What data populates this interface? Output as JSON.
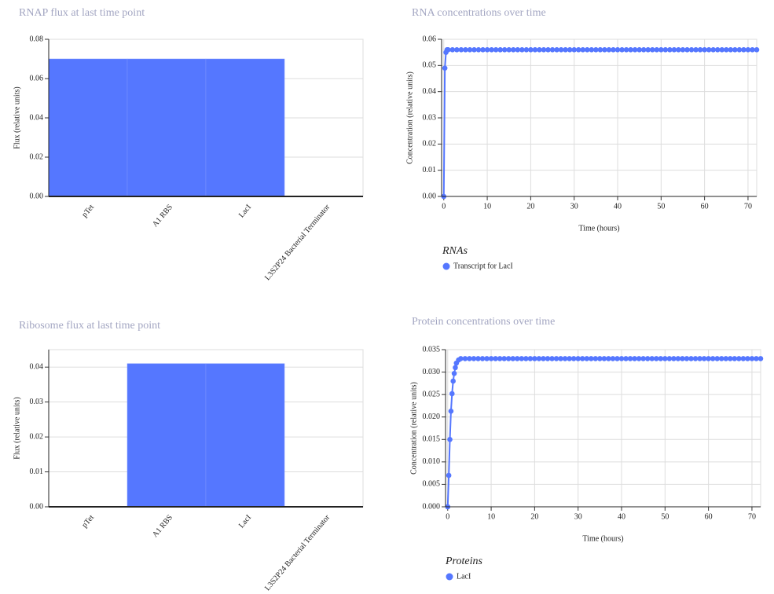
{
  "chart_data": [
    {
      "type": "bar",
      "title": "RNAP flux at last time point",
      "y_label": "Flux (relative units)",
      "categories": [
        "pTet",
        "A1 RBS",
        "LacI",
        "L3S2P24 Bacterial Terminator"
      ],
      "values": [
        0.07,
        0.07,
        0.07,
        0
      ],
      "color": "#5577ff",
      "ylim": [
        0,
        0.08
      ],
      "yticks": [
        {
          "value": 0,
          "label": "0.00"
        },
        0.02,
        0.04,
        0.06,
        0.08
      ],
      "grid": true
    },
    {
      "type": "scatter",
      "title": "RNA concentrations over time",
      "x_label": "Time (hours)",
      "y_label": "Concentration (relative units)",
      "legend_title": "RNAs",
      "x": [
        0,
        0.25,
        0.5,
        0.75,
        1,
        2,
        3,
        4,
        5,
        6,
        7,
        8,
        9,
        10,
        11,
        12,
        13,
        14,
        15,
        16,
        17,
        18,
        19,
        20,
        21,
        22,
        23,
        24,
        25,
        26,
        27,
        28,
        29,
        30,
        31,
        32,
        33,
        34,
        35,
        36,
        37,
        38,
        39,
        40,
        41,
        42,
        43,
        44,
        45,
        46,
        47,
        48,
        49,
        50,
        51,
        52,
        53,
        54,
        55,
        56,
        57,
        58,
        59,
        60,
        61,
        62,
        63,
        64,
        65,
        66,
        67,
        68,
        69,
        70,
        71,
        72
      ],
      "series": [
        {
          "name": "Transcript for LacI",
          "color": "#5577ff",
          "values": [
            0,
            0.049,
            0.055,
            0.056,
            0.056,
            0.056,
            0.056,
            0.056,
            0.056,
            0.056,
            0.056,
            0.056,
            0.056,
            0.056,
            0.056,
            0.056,
            0.056,
            0.056,
            0.056,
            0.056,
            0.056,
            0.056,
            0.056,
            0.056,
            0.056,
            0.056,
            0.056,
            0.056,
            0.056,
            0.056,
            0.056,
            0.056,
            0.056,
            0.056,
            0.056,
            0.056,
            0.056,
            0.056,
            0.056,
            0.056,
            0.056,
            0.056,
            0.056,
            0.056,
            0.056,
            0.056,
            0.056,
            0.056,
            0.056,
            0.056,
            0.056,
            0.056,
            0.056,
            0.056,
            0.056,
            0.056,
            0.056,
            0.056,
            0.056,
            0.056,
            0.056,
            0.056,
            0.056,
            0.056,
            0.056,
            0.056,
            0.056,
            0.056,
            0.056,
            0.056,
            0.056,
            0.056,
            0.056,
            0.056,
            0.056,
            0.056
          ]
        }
      ],
      "xlim": [
        -0.5,
        72
      ],
      "xticks": [
        0,
        10,
        20,
        30,
        40,
        50,
        60,
        70
      ],
      "ylim": [
        0,
        0.06
      ],
      "yticks": [
        {
          "value": 0,
          "label": "0.00"
        },
        0.01,
        0.02,
        0.03,
        0.04,
        0.05,
        0.06
      ],
      "grid": true
    },
    {
      "type": "bar",
      "title": "Ribosome flux at last time point",
      "y_label": "Flux (relative units)",
      "categories": [
        "pTet",
        "A1 RBS",
        "LacI",
        "L3S2P24 Bacterial Terminator"
      ],
      "values": [
        0,
        0.041,
        0.041,
        0
      ],
      "color": "#5577ff",
      "ylim": [
        0,
        0.045
      ],
      "yticks": [
        {
          "value": 0,
          "label": "0.00"
        },
        0.01,
        0.02,
        0.03,
        0.04
      ],
      "grid": true
    },
    {
      "type": "scatter",
      "title": "Protein concentrations over time",
      "x_label": "Time (hours)",
      "y_label": "Concentration (relative units)",
      "legend_title": "Proteins",
      "x": [
        0,
        0.25,
        0.5,
        0.75,
        1,
        1.25,
        1.5,
        1.75,
        2,
        2.5,
        3,
        4,
        5,
        6,
        7,
        8,
        9,
        10,
        11,
        12,
        13,
        14,
        15,
        16,
        17,
        18,
        19,
        20,
        21,
        22,
        23,
        24,
        25,
        26,
        27,
        28,
        29,
        30,
        31,
        32,
        33,
        34,
        35,
        36,
        37,
        38,
        39,
        40,
        41,
        42,
        43,
        44,
        45,
        46,
        47,
        48,
        49,
        50,
        51,
        52,
        53,
        54,
        55,
        56,
        57,
        58,
        59,
        60,
        61,
        62,
        63,
        64,
        65,
        66,
        67,
        68,
        69,
        70,
        71,
        72
      ],
      "series": [
        {
          "name": "LacI",
          "color": "#5577ff",
          "values": [
            0,
            0.007,
            0.015,
            0.0213,
            0.0252,
            0.028,
            0.0297,
            0.031,
            0.032,
            0.0327,
            0.033,
            0.033,
            0.033,
            0.033,
            0.033,
            0.033,
            0.033,
            0.033,
            0.033,
            0.033,
            0.033,
            0.033,
            0.033,
            0.033,
            0.033,
            0.033,
            0.033,
            0.033,
            0.033,
            0.033,
            0.033,
            0.033,
            0.033,
            0.033,
            0.033,
            0.033,
            0.033,
            0.033,
            0.033,
            0.033,
            0.033,
            0.033,
            0.033,
            0.033,
            0.033,
            0.033,
            0.033,
            0.033,
            0.033,
            0.033,
            0.033,
            0.033,
            0.033,
            0.033,
            0.033,
            0.033,
            0.033,
            0.033,
            0.033,
            0.033,
            0.033,
            0.033,
            0.033,
            0.033,
            0.033,
            0.033,
            0.033,
            0.033,
            0.033,
            0.033,
            0.033,
            0.033,
            0.033,
            0.033,
            0.033,
            0.033,
            0.033,
            0.033,
            0.033,
            0.033
          ]
        }
      ],
      "xlim": [
        -0.5,
        72
      ],
      "xticks": [
        0,
        10,
        20,
        30,
        40,
        50,
        60,
        70
      ],
      "ylim": [
        0,
        0.035
      ],
      "yticks": [
        {
          "value": 0,
          "label": "0.000"
        },
        0.005,
        {
          "value": 0.01,
          "label": "0.010"
        },
        0.015,
        {
          "value": 0.02,
          "label": "0.020"
        },
        0.025,
        {
          "value": 0.03,
          "label": "0.030"
        },
        0.035
      ],
      "grid": true
    }
  ]
}
